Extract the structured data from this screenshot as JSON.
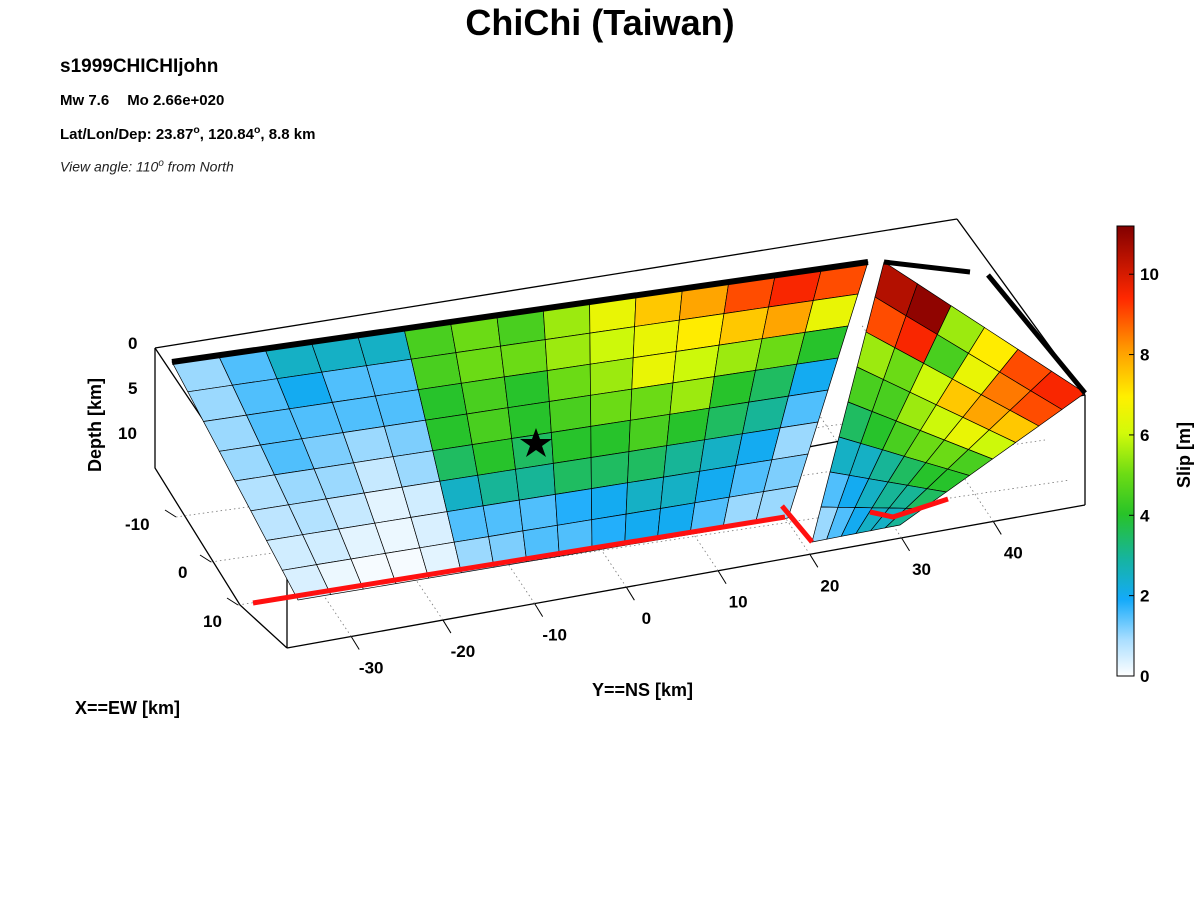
{
  "header": {
    "title": "ChiChi (Taiwan)",
    "model": "s1999CHICHIjohn",
    "mw": "Mw 7.6",
    "mo": "Mo 2.66e+020",
    "lat_prefix": "Lat/Lon/Dep: 23.87",
    "lat_mid": ", 120.84",
    "lat_suffix": ", 8.8 km",
    "deg": "o",
    "view_prefix": "View angle: 110",
    "view_suffix": " from North"
  },
  "chart_data": {
    "type": "heatmap",
    "title": "ChiChi (Taiwan)",
    "xlabel": "X==EW [km]",
    "ylabel": "Y==NS [km]",
    "zlabel": "Depth [km]",
    "colorbar_label": "Slip [m]",
    "x_ticks": [
      "-10",
      "0",
      "10"
    ],
    "y_ticks": [
      "-30",
      "-20",
      "-10",
      "0",
      "10",
      "20",
      "30",
      "40"
    ],
    "z_ticks": [
      "0",
      "5",
      "10"
    ],
    "colorbar_ticks": [
      0,
      2,
      4,
      6,
      8,
      10
    ],
    "colorbar_range": [
      0,
      11.2
    ],
    "view_angle_deg": 110,
    "hypocenter": {
      "lat": 23.87,
      "lon": 120.84,
      "depth_km": 8.8
    },
    "main_segment_slip": [
      [
        1.0,
        1.5,
        2.5,
        2.5,
        2.5,
        4.5,
        5.0,
        4.5,
        5.5,
        6.5,
        7.5,
        8.0,
        9.0,
        9.5,
        9.0
      ],
      [
        1.0,
        1.5,
        2.0,
        1.5,
        1.5,
        4.5,
        5.0,
        5.0,
        5.5,
        6.0,
        6.5,
        7.0,
        7.5,
        8.0,
        6.5
      ],
      [
        1.0,
        1.5,
        1.5,
        1.5,
        1.5,
        4.0,
        4.5,
        4.0,
        5.0,
        5.5,
        6.5,
        6.0,
        5.5,
        5.0,
        4.0
      ],
      [
        1.0,
        1.5,
        1.2,
        1.0,
        1.2,
        4.0,
        4.5,
        4.0,
        4.5,
        5.0,
        5.0,
        5.5,
        4.0,
        3.5,
        2.0
      ],
      [
        0.8,
        1.0,
        1.0,
        0.6,
        1.0,
        3.5,
        4.0,
        3.5,
        4.0,
        4.0,
        4.5,
        4.0,
        3.5,
        3.0,
        1.5
      ],
      [
        0.7,
        0.8,
        0.6,
        0.3,
        0.5,
        2.5,
        3.0,
        3.0,
        3.5,
        3.5,
        3.5,
        3.0,
        2.5,
        2.0,
        1.0
      ],
      [
        0.5,
        0.5,
        0.3,
        0.2,
        0.4,
        1.5,
        1.5,
        1.5,
        1.8,
        2.0,
        2.5,
        2.5,
        2.0,
        1.5,
        1.2
      ],
      [
        0.4,
        0.2,
        0.1,
        0.1,
        0.3,
        1.0,
        1.2,
        1.5,
        1.5,
        1.8,
        2.0,
        2.0,
        1.5,
        1.0,
        1.0
      ]
    ],
    "north_segment_slip": [
      [
        10.5,
        11.0,
        5.5,
        7.0,
        9.0,
        9.5
      ],
      [
        9.0,
        9.5,
        4.5,
        6.5,
        8.5,
        9.0
      ],
      [
        5.5,
        5.0,
        6.0,
        7.5,
        8.0,
        7.5
      ],
      [
        4.5,
        4.5,
        5.5,
        6.0,
        6.5,
        6.0
      ],
      [
        3.5,
        4.0,
        4.5,
        5.0,
        5.0,
        4.5
      ],
      [
        2.5,
        2.5,
        3.0,
        3.5,
        4.0,
        4.0
      ],
      [
        1.5,
        2.0,
        2.5,
        3.0,
        3.0,
        3.5
      ],
      [
        1.0,
        1.5,
        2.0,
        2.5,
        2.5,
        3.0
      ]
    ]
  }
}
